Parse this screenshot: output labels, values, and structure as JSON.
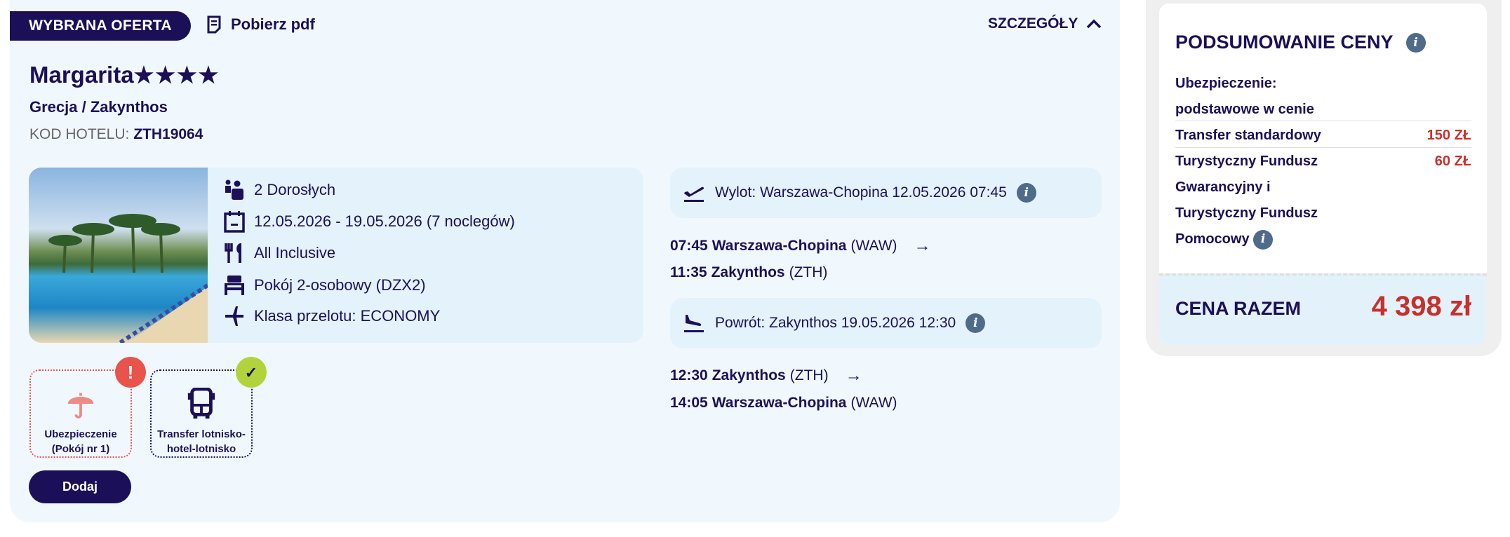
{
  "offer": {
    "badge": "WYBRANA OFERTA",
    "pdf_label": "Pobierz pdf",
    "details_label": "SZCZEGÓŁY",
    "hotel_name": "Margarita",
    "stars": 4,
    "stars_text": "★★★★",
    "region": "Grecja / Zakynthos",
    "code_label": "KOD HOTELU:",
    "code_value": "ZTH19064"
  },
  "info": {
    "guests": "2 Dorosłych",
    "dates": "12.05.2026 - 19.05.2026 (7 noclegów)",
    "board": "All Inclusive",
    "room": "Pokój 2-osobowy (DZX2)",
    "flight_class": "Klasa przelotu: ECONOMY"
  },
  "flights": {
    "outbound": {
      "header": "Wylot: Warszawa-Chopina 12.05.2026 07:45",
      "dep_time": "07:45",
      "dep_city": "Warszawa-Chopina",
      "dep_code": "(WAW)",
      "arr_time": "11:35",
      "arr_city": "Zakynthos",
      "arr_code": "(ZTH)"
    },
    "return": {
      "header": "Powrót: Zakynthos 19.05.2026 12:30",
      "dep_time": "12:30",
      "dep_city": "Zakynthos",
      "dep_code": "(ZTH)",
      "arr_time": "14:05",
      "arr_city": "Warszawa-Chopina",
      "arr_code": "(WAW)"
    }
  },
  "extras": [
    {
      "label": "Ubezpieczenie (Pokój nr 1)",
      "status": "warning",
      "color": "#e8534b"
    },
    {
      "label": "Transfer lotnisko-hotel-lotnisko",
      "status": "selected",
      "color": "#b3d33c"
    }
  ],
  "add_button": "Dodaj",
  "summary": {
    "title": "PODSUMOWANIE CENY",
    "insurance_label": "Ubezpieczenie:",
    "insurance_value": "podstawowe w cenie",
    "transfer_label": "Transfer standardowy",
    "transfer_price": "150 ZŁ",
    "fund_label": "Turystyczny Fundusz Gwarancyjny i Turystyczny Fundusz Pomocowy",
    "fund_price": "60 ZŁ",
    "total_label": "CENA RAZEM",
    "total_value": "4 398 zł"
  },
  "colors": {
    "navy": "#1b1058",
    "price_red": "#c8302b",
    "card_bg": "#f1f8fd",
    "info_bg": "#e3f2fb"
  }
}
